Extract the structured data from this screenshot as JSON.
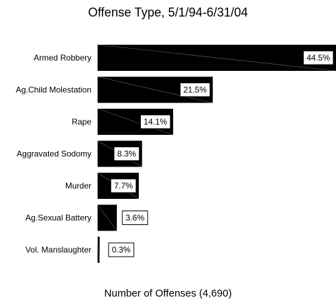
{
  "chart_data": {
    "type": "bar",
    "orientation": "horizontal",
    "title": "Offense Type, 5/1/94-6/31/04",
    "xlabel": "Number of Offenses (4,690)",
    "categories": [
      "Armed Robbery",
      "Ag.Child Molestation",
      "Rape",
      "Aggravated Sodomy",
      "Murder",
      "Ag.Sexual Battery",
      "Vol. Manslaughter"
    ],
    "values": [
      44.5,
      21.5,
      14.1,
      8.3,
      7.7,
      3.6,
      0.3
    ],
    "data_labels": [
      "44.5%",
      "21.5%",
      "14.1%",
      "8.3%",
      "7.7%",
      "3.6%",
      "0.3%"
    ],
    "unit": "%",
    "xlim": [
      0,
      44.5
    ],
    "grid": false,
    "legend": "none",
    "bar_color": "#000000"
  }
}
